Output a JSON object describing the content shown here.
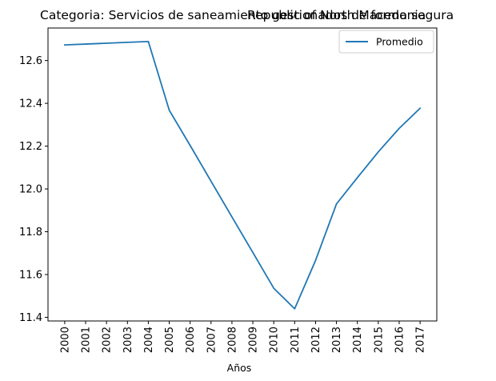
{
  "chart_data": {
    "type": "line",
    "title_left": "Categoria: Servicios de saneamiento gestionados de forma segura",
    "title_right": "Republic of North Macedonia",
    "xlabel": "Años",
    "ylabel": "",
    "x": [
      2000,
      2001,
      2002,
      2003,
      2004,
      2005,
      2006,
      2007,
      2008,
      2009,
      2010,
      2011,
      2012,
      2013,
      2014,
      2015,
      2016,
      2017
    ],
    "series": [
      {
        "name": "Promedio",
        "color": "#1f77b4",
        "values": [
          12.673,
          12.677,
          12.681,
          12.685,
          12.689,
          12.368,
          12.203,
          12.036,
          11.869,
          11.703,
          11.536,
          11.44,
          11.666,
          11.93,
          12.053,
          12.173,
          12.283,
          12.377
        ]
      }
    ],
    "xlim": [
      1999.2,
      2017.8
    ],
    "ylim": [
      11.383,
      12.752
    ],
    "yticks": [
      11.4,
      11.6,
      11.8,
      12.0,
      12.2,
      12.4,
      12.6
    ],
    "ytick_labels": [
      "11.4",
      "11.6",
      "11.8",
      "12.0",
      "12.2",
      "12.4",
      "12.6"
    ],
    "xtick_labels": [
      "2000",
      "2001",
      "2002",
      "2003",
      "2004",
      "2005",
      "2006",
      "2007",
      "2008",
      "2009",
      "2010",
      "2011",
      "2012",
      "2013",
      "2014",
      "2015",
      "2016",
      "2017"
    ],
    "grid": false,
    "legend": "top-right"
  }
}
